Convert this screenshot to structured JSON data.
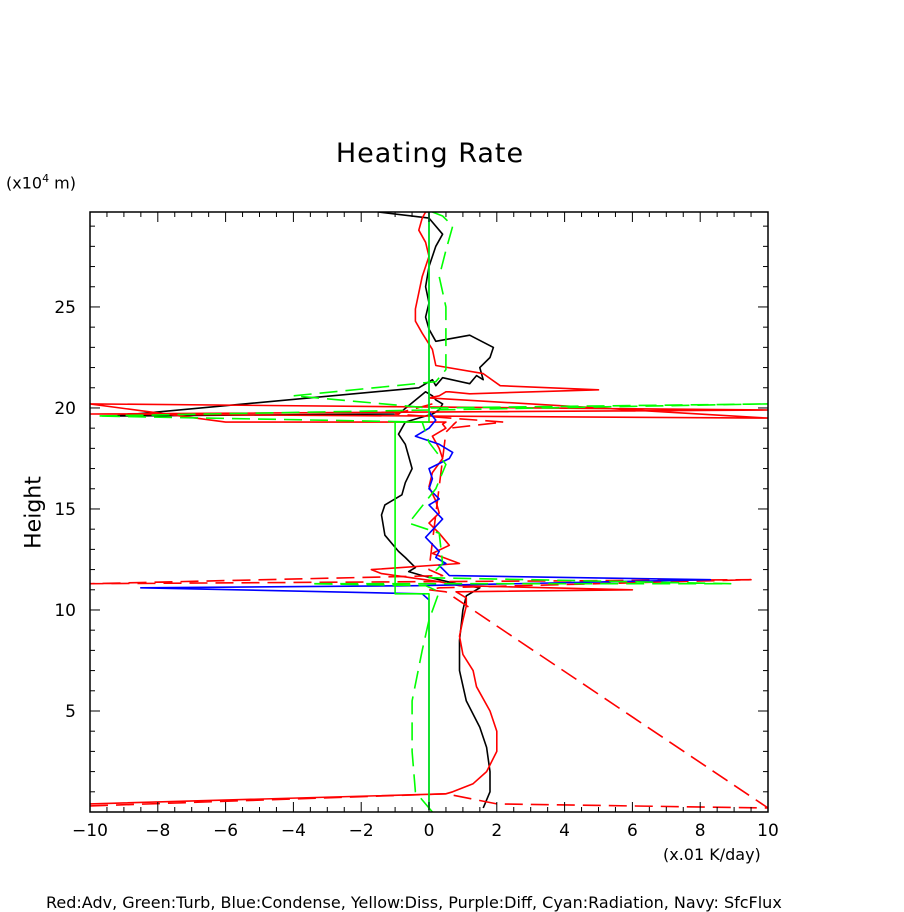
{
  "chart_data": {
    "type": "line",
    "title": "Heating Rate",
    "xlabel": "(x.01 K/day)",
    "ylabel": "Height",
    "yunit_prefix": "(x10",
    "yunit_exp": "4",
    "yunit_suffix": " m)",
    "xlim": [
      -10,
      10
    ],
    "ylim": [
      0,
      29.7
    ],
    "xticks": [
      -10,
      -8,
      -6,
      -4,
      -2,
      0,
      2,
      4,
      6,
      8,
      10
    ],
    "yticks": [
      5,
      10,
      15,
      20,
      25
    ],
    "legend_text": "Red:Adv, Green:Turb, Blue:Condense, Yellow:Diss, Purple:Diff, Cyan:Radiation, Navy: SfcFlux",
    "series": [
      {
        "name": "black-solid",
        "color": "#000000",
        "dash": "",
        "x": [
          1.6,
          1.7,
          1.8,
          1.8,
          1.7,
          1.5,
          1.1,
          0.9,
          0.9,
          1.0,
          1.1,
          1.3,
          1.5,
          0.8,
          -0.2,
          -0.6,
          -0.4,
          -0.7,
          -0.9,
          -1.3,
          -1.4,
          -1.3,
          -0.8,
          -0.7,
          -0.5,
          -0.6,
          -0.7,
          -0.9,
          -0.7,
          0.1,
          0.3,
          0.4,
          0.2,
          0.1,
          0,
          -0.1,
          -0.9,
          -9.3,
          -0.3,
          0.1,
          0.2,
          0.4,
          1.2,
          1.4,
          1.6,
          1.5,
          1.8,
          1.9,
          1.2,
          0.2,
          0.0,
          -0.1,
          0.0,
          -0.1,
          0.0,
          0.2,
          0.4,
          0.0,
          -1.5
        ],
        "y": [
          0.2,
          0.6,
          1.0,
          2.0,
          3.2,
          4.2,
          5.5,
          7.0,
          8.5,
          10.0,
          10.7,
          10.9,
          11.1,
          11.3,
          11.7,
          11.9,
          12.1,
          12.6,
          12.9,
          13.7,
          14.7,
          15.2,
          15.7,
          16.3,
          17.0,
          17.6,
          18.2,
          18.7,
          19.3,
          19.7,
          19.9,
          20.2,
          20.4,
          20.6,
          20.7,
          20.8,
          19.7,
          19.6,
          21.0,
          21.4,
          21.1,
          21.5,
          21.2,
          21.6,
          21.4,
          22.0,
          22.5,
          23.0,
          23.6,
          23.3,
          23.9,
          24.5,
          25.2,
          26.0,
          27.0,
          28.0,
          28.6,
          29.4,
          29.7
        ]
      },
      {
        "name": "red-solid",
        "color": "#ff0000",
        "dash": "",
        "x": [
          -10,
          0.5,
          0.7,
          1.3,
          1.7,
          2.0,
          2.0,
          1.8,
          1.4,
          1.3,
          1.0,
          0.9,
          1.0,
          1.1,
          1.1,
          0.9,
          0.8,
          6.0,
          0.9,
          0.3,
          -1.4,
          -1.7,
          0.9,
          0.1,
          0.6,
          0.3,
          0.0,
          0.3,
          0.2,
          0.0,
          0.1,
          0.4,
          0.3,
          0.1,
          0.5,
          0.4,
          0.5,
          -6.0,
          -10,
          10,
          -10,
          10,
          0.0,
          0.3,
          0.5,
          0.6,
          1.2,
          5.0,
          2.1,
          1.6,
          0.2,
          0.1,
          -0.2,
          -0.4,
          -0.4,
          -0.3,
          -0.2,
          0.0,
          -0.1,
          -0.3,
          -0.2,
          -0.1,
          0.0
        ],
        "y": [
          0.4,
          0.9,
          1.0,
          1.4,
          2.0,
          3.0,
          4.0,
          5.0,
          6.2,
          7.0,
          7.8,
          8.7,
          9.5,
          10.2,
          10.6,
          10.8,
          10.9,
          11.0,
          11.2,
          11.4,
          11.8,
          12.0,
          12.3,
          12.8,
          13.2,
          13.8,
          14.3,
          14.8,
          15.4,
          16.1,
          16.8,
          17.5,
          18.0,
          18.6,
          19.0,
          19.2,
          19.3,
          19.3,
          20.2,
          19.9,
          19.7,
          19.5,
          20.5,
          20.6,
          20.8,
          20.8,
          20.7,
          20.9,
          21.1,
          21.7,
          22.1,
          22.9,
          23.7,
          24.3,
          24.9,
          25.7,
          26.5,
          27.5,
          28.2,
          28.8,
          29.4,
          29.7,
          29.7
        ]
      },
      {
        "name": "red-dashed",
        "color": "#ff0000",
        "dash": "18 8",
        "x": [
          -10,
          0.5,
          2.0,
          10,
          0.5,
          0,
          0.3,
          9.5,
          -10,
          0.4,
          0.0,
          0.5,
          0.8,
          0.6,
          2.2,
          -1.0,
          0.1
        ],
        "y": [
          0.3,
          0.9,
          0.4,
          0.2,
          10.9,
          11.0,
          11.1,
          11.5,
          11.3,
          11.7,
          12.0,
          18.8,
          19.3,
          19.0,
          19.3,
          19.7,
          20.2
        ]
      },
      {
        "name": "blue-solid",
        "color": "#0000ff",
        "dash": "",
        "x": [
          0,
          0,
          0,
          0,
          -0.2,
          -8.5,
          -0.3,
          8.3,
          0.6,
          0.3,
          0.5,
          0.2,
          0.3,
          -0.1,
          0.4,
          0.0,
          0.3,
          0.0,
          0.1,
          0.0,
          0.6,
          0.7,
          0.3,
          -0.4,
          0.0,
          0.2,
          0,
          0,
          0,
          0
        ],
        "y": [
          0.1,
          5.0,
          9.0,
          10.5,
          10.8,
          11.1,
          11.2,
          11.5,
          11.7,
          12.2,
          12.3,
          12.6,
          12.9,
          13.6,
          14.5,
          15.2,
          15.5,
          16.0,
          16.5,
          17.0,
          17.5,
          17.8,
          18.2,
          18.6,
          19.0,
          19.4,
          19.8,
          22.0,
          27.0,
          29.7
        ]
      },
      {
        "name": "green-solid",
        "color": "#00ff00",
        "dash": "",
        "x": [
          0,
          0,
          0,
          -1.0,
          -1.0,
          -1.0,
          -1.0,
          0,
          0,
          0,
          0
        ],
        "y": [
          0.1,
          5.0,
          10.8,
          10.8,
          14.1,
          14.1,
          19.3,
          19.3,
          20.0,
          25.0,
          29.7
        ]
      },
      {
        "name": "green-dashed",
        "color": "#00ff00",
        "dash": "18 8",
        "x": [
          0.1,
          -0.4,
          -0.5,
          -0.5,
          -0.2,
          0.0,
          0.3,
          -0.1,
          -3.5,
          8.9,
          0.0,
          0.4,
          0.3,
          -0.6,
          0.2,
          0.5,
          0.0,
          -0.2,
          -9.8,
          10,
          0.0,
          -4.0,
          0.2,
          0.5,
          0.5,
          0.5,
          0.3,
          0.5,
          0.7,
          0.4,
          0.1
        ],
        "y": [
          0.0,
          1.0,
          3.0,
          5.5,
          8.0,
          9.5,
          10.9,
          11.2,
          11.3,
          11.3,
          11.6,
          12.3,
          13.8,
          14.3,
          16.0,
          17.2,
          18.3,
          19.3,
          19.6,
          20.2,
          20.0,
          20.6,
          21.3,
          21.9,
          23.0,
          25.0,
          26.5,
          27.8,
          29.0,
          29.5,
          29.7
        ]
      }
    ]
  }
}
